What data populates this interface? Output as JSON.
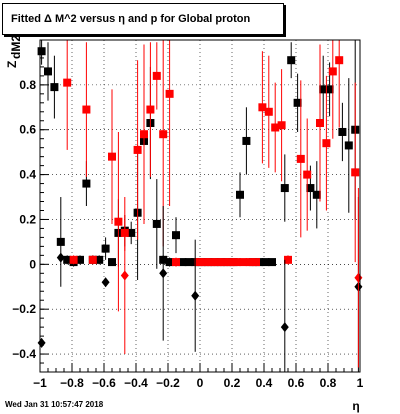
{
  "title": "Fitted Δ M^2 versus η and p for Global proton",
  "timestamp": "Wed Jan 31 10:57:47 2018",
  "chart_data": {
    "type": "scatter",
    "xlabel": "η",
    "ylabel": "Z",
    "ylabel_sub": "dM2",
    "xlim": [
      -1,
      1
    ],
    "ylim": [
      -0.48,
      1.0
    ],
    "xticks": [
      -1,
      -0.8,
      -0.6,
      -0.4,
      -0.2,
      0,
      0.2,
      0.4,
      0.6,
      0.8,
      1
    ],
    "xtick_labels": [
      "−1",
      "−0.8",
      "−0.6",
      "−0.4",
      "−0.2",
      "0",
      "0.2",
      "0.4",
      "0.6",
      "0.8",
      "1"
    ],
    "yticks": [
      -0.4,
      -0.2,
      0,
      0.2,
      0.4,
      0.6,
      0.8
    ],
    "ytick_labels": [
      "−0.4",
      "−0.2",
      "0",
      "0.2",
      "0.4",
      "0.6",
      "0.8"
    ],
    "grid": true,
    "series": [
      {
        "color": "#000000",
        "marker": "square",
        "points": [
          {
            "x": -0.99,
            "y": 0.95,
            "err": 0.06
          },
          {
            "x": -0.95,
            "y": 0.86,
            "err": 0.13
          },
          {
            "x": -0.91,
            "y": 0.79,
            "err": 0.14
          },
          {
            "x": -0.87,
            "y": 0.1,
            "err": 0.2
          },
          {
            "x": -0.83,
            "y": 0.02,
            "err": 0.02
          },
          {
            "x": -0.79,
            "y": 0.01,
            "err": 0.02
          },
          {
            "x": -0.75,
            "y": 0.02,
            "err": 0.02
          },
          {
            "x": -0.71,
            "y": 0.36,
            "err": 0.1
          },
          {
            "x": -0.67,
            "y": 0.02,
            "err": 0.02
          },
          {
            "x": -0.63,
            "y": 0.02,
            "err": 0.02
          },
          {
            "x": -0.59,
            "y": 0.07,
            "err": 0.05
          },
          {
            "x": -0.55,
            "y": 0.01,
            "err": 0.01
          },
          {
            "x": -0.51,
            "y": 0.14,
            "err": 0.15
          },
          {
            "x": -0.47,
            "y": 0.15,
            "err": 0.07
          },
          {
            "x": -0.43,
            "y": 0.14,
            "err": 0.05
          },
          {
            "x": -0.39,
            "y": 0.23,
            "err": 0.3
          },
          {
            "x": -0.35,
            "y": 0.55,
            "err": 0.25
          },
          {
            "x": -0.31,
            "y": 0.63,
            "err": 0.25
          },
          {
            "x": -0.27,
            "y": 0.18,
            "err": 0.2
          },
          {
            "x": -0.23,
            "y": 0.02,
            "err": 0.02
          },
          {
            "x": -0.19,
            "y": 0.01,
            "err": 0.02
          },
          {
            "x": -0.15,
            "y": 0.13,
            "err": 0.08
          },
          {
            "x": -0.11,
            "y": 0.01,
            "err": 0.01
          },
          {
            "x": -0.07,
            "y": 0.01,
            "err": 0.01
          },
          {
            "x": -0.03,
            "y": 0.01,
            "err": 0.01
          },
          {
            "x": 0.01,
            "y": 0.01,
            "err": 0.01
          },
          {
            "x": 0.05,
            "y": 0.01,
            "err": 0.01
          },
          {
            "x": 0.09,
            "y": 0.01,
            "err": 0.01
          },
          {
            "x": 0.13,
            "y": 0.01,
            "err": 0.01
          },
          {
            "x": 0.17,
            "y": 0.01,
            "err": 0.01
          },
          {
            "x": 0.21,
            "y": 0.01,
            "err": 0.01
          },
          {
            "x": 0.25,
            "y": 0.31,
            "err": 0.1
          },
          {
            "x": 0.29,
            "y": 0.55,
            "err": 0.15
          },
          {
            "x": 0.33,
            "y": 0.01,
            "err": 0.01
          },
          {
            "x": 0.37,
            "y": 0.01,
            "err": 0.01
          },
          {
            "x": 0.41,
            "y": 0.01,
            "err": 0.01
          },
          {
            "x": 0.45,
            "y": 0.01,
            "err": 0.01
          },
          {
            "x": 0.53,
            "y": 0.34,
            "err": 0.15
          },
          {
            "x": 0.57,
            "y": 0.91,
            "err": 0.08
          },
          {
            "x": 0.61,
            "y": 0.72,
            "err": 0.13
          },
          {
            "x": 0.69,
            "y": 0.34,
            "err": 0.1
          },
          {
            "x": 0.73,
            "y": 0.31,
            "err": 0.15
          },
          {
            "x": 0.77,
            "y": 0.78,
            "err": 0.15
          },
          {
            "x": 0.81,
            "y": 0.78,
            "err": 0.12
          },
          {
            "x": 0.89,
            "y": 0.59,
            "err": 0.13
          },
          {
            "x": 0.93,
            "y": 0.53,
            "err": 0.3
          },
          {
            "x": 0.97,
            "y": 0.6,
            "err": 0.4
          }
        ]
      },
      {
        "color": "#ff0000",
        "marker": "square",
        "points": [
          {
            "x": -0.83,
            "y": 0.81,
            "err": 0.3
          },
          {
            "x": -0.79,
            "y": 0.02,
            "err": 0.02
          },
          {
            "x": -0.71,
            "y": 0.69,
            "err": 0.3
          },
          {
            "x": -0.67,
            "y": 0.02,
            "err": 0.02
          },
          {
            "x": -0.55,
            "y": 0.48,
            "err": 0.3
          },
          {
            "x": -0.51,
            "y": 0.19,
            "err": 0.4
          },
          {
            "x": -0.47,
            "y": 0.14,
            "err": 0.08
          },
          {
            "x": -0.39,
            "y": 0.51,
            "err": 0.4
          },
          {
            "x": -0.35,
            "y": 0.58,
            "err": 0.4
          },
          {
            "x": -0.31,
            "y": 0.69,
            "err": 0.3
          },
          {
            "x": -0.27,
            "y": 0.84,
            "err": 0.15
          },
          {
            "x": -0.23,
            "y": 0.58,
            "err": 0.5
          },
          {
            "x": -0.19,
            "y": 0.76,
            "err": 0.5
          },
          {
            "x": -0.15,
            "y": 0.01,
            "err": 0.02
          },
          {
            "x": -0.01,
            "y": 0.01,
            "err": 0.01
          },
          {
            "x": 0.03,
            "y": 0.01,
            "err": 0.01
          },
          {
            "x": 0.07,
            "y": 0.01,
            "err": 0.01
          },
          {
            "x": 0.11,
            "y": 0.01,
            "err": 0.01
          },
          {
            "x": 0.15,
            "y": 0.01,
            "err": 0.01
          },
          {
            "x": 0.19,
            "y": 0.01,
            "err": 0.01
          },
          {
            "x": 0.23,
            "y": 0.01,
            "err": 0.01
          },
          {
            "x": 0.27,
            "y": 0.01,
            "err": 0.01
          },
          {
            "x": 0.31,
            "y": 0.01,
            "err": 0.01
          },
          {
            "x": 0.35,
            "y": 0.01,
            "err": 0.01
          },
          {
            "x": 0.39,
            "y": 0.7,
            "err": 0.25
          },
          {
            "x": 0.43,
            "y": 0.68,
            "err": 0.25
          },
          {
            "x": 0.47,
            "y": 0.61,
            "err": 0.2
          },
          {
            "x": 0.51,
            "y": 0.62,
            "err": 0.25
          },
          {
            "x": 0.55,
            "y": 0.02,
            "err": 0.02
          },
          {
            "x": 0.63,
            "y": 0.47,
            "err": 0.35
          },
          {
            "x": 0.67,
            "y": 0.4,
            "err": 0.25
          },
          {
            "x": 0.75,
            "y": 0.63,
            "err": 0.35
          },
          {
            "x": 0.79,
            "y": 0.54,
            "err": 0.3
          },
          {
            "x": 0.83,
            "y": 0.86,
            "err": 0.3
          },
          {
            "x": 0.87,
            "y": 0.91,
            "err": 0.3
          },
          {
            "x": 0.97,
            "y": 0.41,
            "err": 0.4
          }
        ]
      },
      {
        "color": "#000000",
        "marker": "diamond",
        "points": [
          {
            "x": -0.99,
            "y": -0.35,
            "err": 0.02
          },
          {
            "x": -0.87,
            "y": 0.03,
            "err": 0.01
          },
          {
            "x": -0.59,
            "y": -0.08,
            "err": 0.02
          },
          {
            "x": -0.23,
            "y": -0.04,
            "err": 0.3
          },
          {
            "x": -0.03,
            "y": -0.14,
            "err": 0.25
          },
          {
            "x": 0.53,
            "y": -0.28,
            "err": 0.3
          },
          {
            "x": 0.99,
            "y": -0.1,
            "err": 0.4
          }
        ]
      },
      {
        "color": "#ff0000",
        "marker": "diamond",
        "points": [
          {
            "x": -0.47,
            "y": -0.05,
            "err": 0.35
          },
          {
            "x": 0.99,
            "y": -0.06,
            "err": 0.4
          }
        ]
      }
    ]
  }
}
